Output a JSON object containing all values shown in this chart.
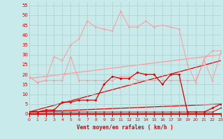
{
  "xlabel": "Vent moyen/en rafales ( km/h )",
  "bg": "#c8eaea",
  "grid_color": "#b0cccc",
  "red_dark": "#dd0000",
  "red_light": "#ff9999",
  "xlim": [
    0,
    23
  ],
  "ylim": [
    0,
    57
  ],
  "yticks": [
    0,
    5,
    10,
    15,
    20,
    25,
    30,
    35,
    40,
    45,
    50,
    55
  ],
  "xticks": [
    0,
    1,
    2,
    3,
    4,
    5,
    6,
    7,
    8,
    9,
    10,
    11,
    12,
    13,
    14,
    15,
    16,
    17,
    18,
    19,
    20,
    21,
    22,
    23
  ],
  "rafales_max": [
    19,
    16,
    17,
    29,
    27,
    35,
    38,
    47,
    44,
    43,
    42,
    52,
    44,
    44,
    47,
    44,
    45,
    44,
    43,
    25,
    16,
    28,
    32,
    32
  ],
  "rafales_mid": [
    19,
    16,
    17,
    17,
    17,
    29,
    17,
    17,
    17,
    17,
    17,
    19,
    19,
    17,
    17,
    17,
    17,
    17,
    17,
    17,
    17,
    27,
    17,
    31
  ],
  "vent_moy": [
    1,
    1,
    2,
    2,
    6,
    6,
    7,
    7,
    7,
    15,
    19,
    18,
    18,
    21,
    20,
    20,
    15,
    20,
    20,
    1,
    1,
    1,
    3,
    5
  ],
  "vent_min": [
    1,
    1,
    1,
    1,
    1,
    1,
    1,
    1,
    1,
    1,
    1,
    1,
    1,
    1,
    1,
    1,
    1,
    1,
    1,
    1,
    1,
    1,
    1,
    3
  ],
  "vent_zero": [
    0,
    0,
    0,
    0,
    0,
    0,
    0,
    0,
    0,
    0,
    0,
    0,
    0,
    0,
    0,
    0,
    0,
    0,
    0,
    0,
    0,
    0,
    0,
    0
  ],
  "trend_light": [
    18,
    30
  ],
  "trend_dark1": [
    1,
    27
  ],
  "trend_dark2": [
    1,
    5
  ]
}
